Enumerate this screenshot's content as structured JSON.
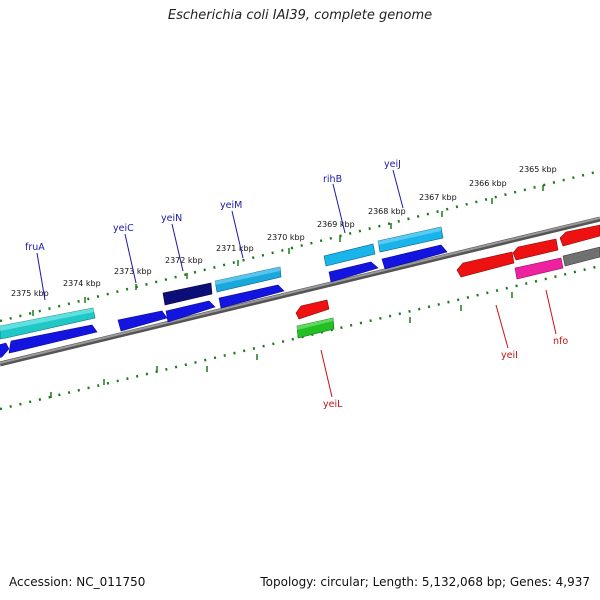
{
  "title": "Escherichia coli IAI39, complete genome",
  "footer": {
    "accession": "Accession: NC_011750",
    "summary": "Topology: circular; Length: 5,132,068 bp; Genes: 4,937"
  },
  "colors": {
    "backbone": "#7a7a7a",
    "tick": "#1a7a1a",
    "forward_label": "#1a1aa8",
    "reverse_label": "#cc1111"
  },
  "scale_labels": [
    "2375 kbp",
    "2374 kbp",
    "2373 kbp",
    "2372 kbp",
    "2371 kbp",
    "2370 kbp",
    "2369 kbp",
    "2368 kbp",
    "2367 kbp",
    "2366 kbp",
    "2365 kbp"
  ],
  "gene_labels": [
    {
      "name": "fruA",
      "strand": "forward"
    },
    {
      "name": "yeiC",
      "strand": "forward"
    },
    {
      "name": "yeiN",
      "strand": "forward"
    },
    {
      "name": "yeiM",
      "strand": "forward"
    },
    {
      "name": "rihB",
      "strand": "forward"
    },
    {
      "name": "yeiJ",
      "strand": "forward"
    },
    {
      "name": "yeiL",
      "strand": "reverse"
    },
    {
      "name": "yeiI",
      "strand": "reverse"
    },
    {
      "name": "nfo",
      "strand": "reverse"
    }
  ]
}
